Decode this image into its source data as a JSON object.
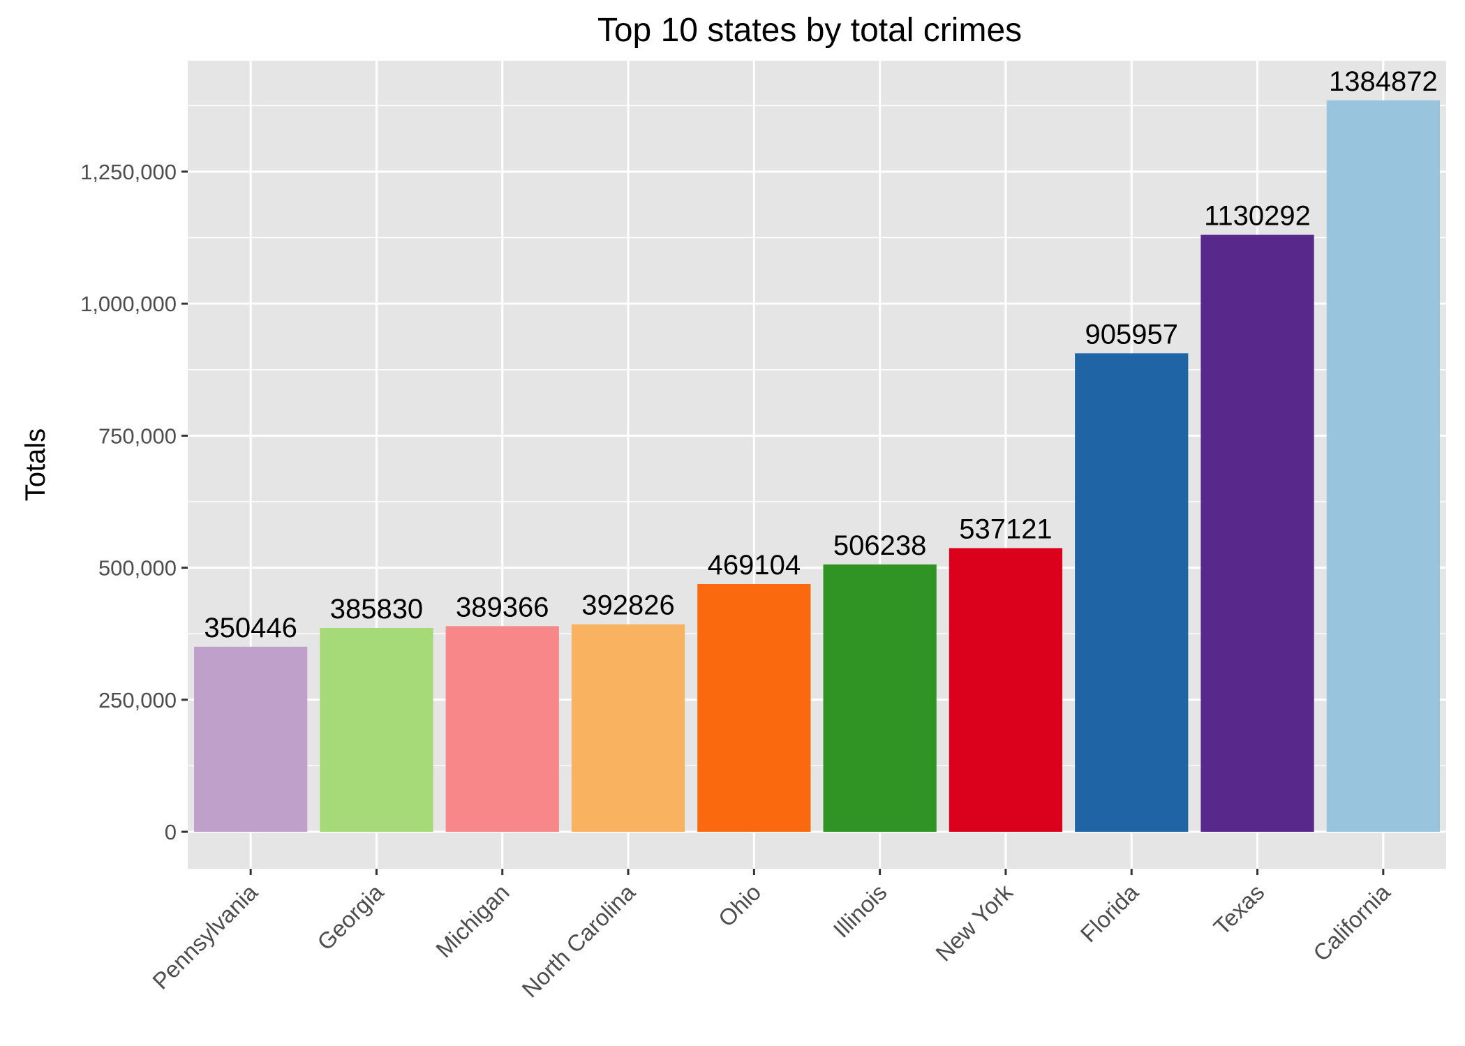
{
  "chart_data": {
    "type": "bar",
    "title": "Top 10 states by total crimes",
    "xlabel": "",
    "ylabel": "Totals",
    "categories": [
      "Pennsylvania",
      "Georgia",
      "Michigan",
      "North Carolina",
      "Ohio",
      "Illinois",
      "New York",
      "Florida",
      "Texas",
      "California"
    ],
    "values": [
      350446,
      385830,
      389366,
      392826,
      469104,
      506238,
      537121,
      905957,
      1130292,
      1384872
    ],
    "data_labels": [
      "350446",
      "385830",
      "389366",
      "392826",
      "469104",
      "506238",
      "537121",
      "905957",
      "1130292",
      "1384872"
    ],
    "colors": [
      "#BEA0CB",
      "#A6DA78",
      "#F8878A",
      "#F9B25F",
      "#FB690F",
      "#2F9423",
      "#DB011C",
      "#1F64A5",
      "#58288A",
      "#98C4DD"
    ],
    "ylim": [
      -70000,
      1460000
    ],
    "yticks": [
      0,
      250000,
      500000,
      750000,
      1000000,
      1250000
    ],
    "ytick_labels": [
      "0",
      "250,000",
      "500,000",
      "750,000",
      "1,000,000",
      "1,250,000"
    ],
    "grid": true,
    "legend": "none",
    "panel_background": "#E5E5E5",
    "grid_color": "#FFFFFF"
  }
}
